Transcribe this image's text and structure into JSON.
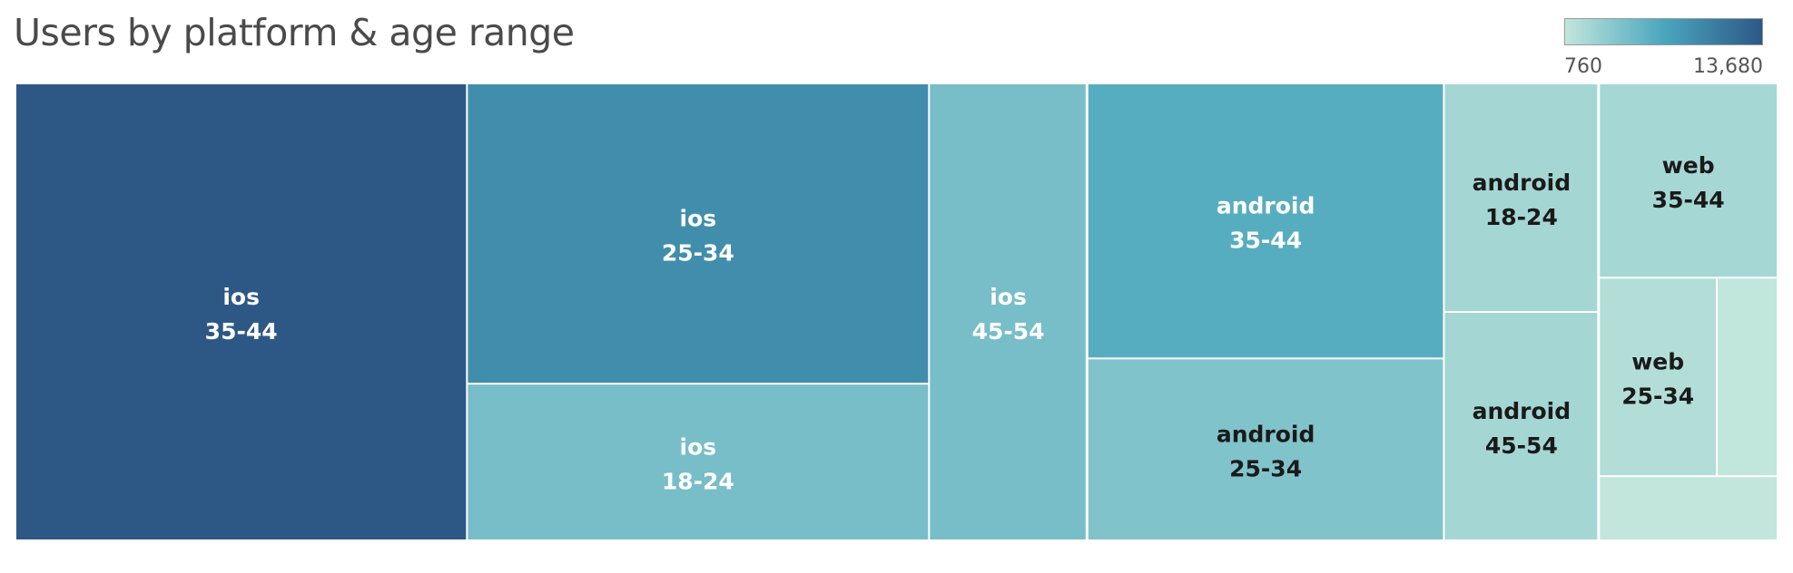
{
  "colors": {
    "scale_low": "#c2e6dc",
    "scale_mid": "#4aa6bd",
    "scale_high": "#2d5886",
    "label_light": "#ffffff",
    "label_dark": "#1a1a1a"
  },
  "chart_data": {
    "type": "treemap",
    "title": "Users by platform & age range",
    "legend": {
      "type": "color-scale",
      "placement": "top-right",
      "min": 760,
      "max": 13680,
      "min_label": "760",
      "max_label": "13,680"
    },
    "groups": [
      {
        "platform": "ios",
        "children": [
          {
            "label_top": "ios",
            "label_bottom": "35-44",
            "value": 13680
          },
          {
            "label_top": "ios",
            "label_bottom": "25-34",
            "value": 9200
          },
          {
            "label_top": "ios",
            "label_bottom": "18-24",
            "value": 4800
          },
          {
            "label_top": "ios",
            "label_bottom": "45-54",
            "value": 4800
          }
        ]
      },
      {
        "platform": "android",
        "children": [
          {
            "label_top": "android",
            "label_bottom": "35-44",
            "value": 6500
          },
          {
            "label_top": "android",
            "label_bottom": "25-34",
            "value": 4300
          },
          {
            "label_top": "android",
            "label_bottom": "18-24",
            "value": 2350
          },
          {
            "label_top": "android",
            "label_bottom": "45-54",
            "value": 2350
          }
        ]
      },
      {
        "platform": "web",
        "children": [
          {
            "label_top": "web",
            "label_bottom": "35-44",
            "value": 2300
          },
          {
            "label_top": "web",
            "label_bottom": "25-34",
            "value": 1550
          },
          {
            "label_top": "",
            "label_bottom": "",
            "value": 800
          },
          {
            "label_top": "",
            "label_bottom": "",
            "value": 760
          }
        ]
      }
    ]
  }
}
